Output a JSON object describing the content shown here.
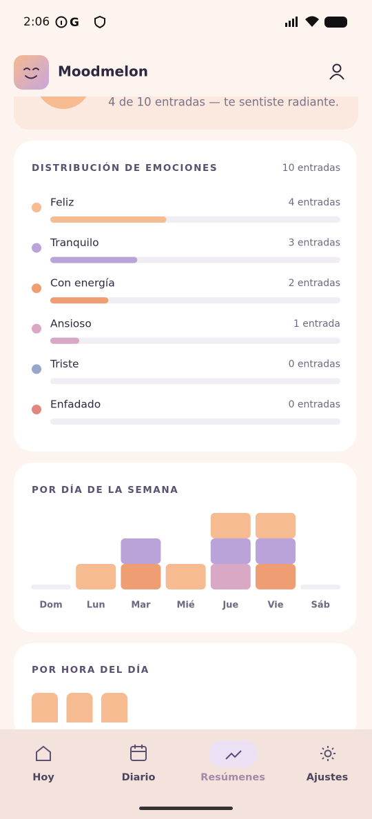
{
  "status_bar": {
    "time": "2:06"
  },
  "header": {
    "app_name": "Moodmelon"
  },
  "summary": {
    "text": "4 de 10 entradas — te sentiste radiante."
  },
  "distribution": {
    "title": "DISTRIBUCIÓN DE EMOCIONES",
    "total": 10,
    "total_label": "10 entradas",
    "emotions": [
      {
        "name": "Feliz",
        "color": "#f6bb91",
        "count": 4,
        "count_label": "4 entradas"
      },
      {
        "name": "Tranquilo",
        "color": "#b9a3d8",
        "count": 3,
        "count_label": "3 entradas"
      },
      {
        "name": "Con energía",
        "color": "#ef9d72",
        "count": 2,
        "count_label": "2 entradas"
      },
      {
        "name": "Ansioso",
        "color": "#d8a8c4",
        "count": 1,
        "count_label": "1 entrada"
      },
      {
        "name": "Triste",
        "color": "#97a7c9",
        "count": 0,
        "count_label": "0 entradas"
      },
      {
        "name": "Enfadado",
        "color": "#e0877f",
        "count": 0,
        "count_label": "0 entradas"
      }
    ]
  },
  "weekday": {
    "title": "POR DÍA DE LA SEMANA",
    "type": "stacked_bar",
    "ylim": [
      0,
      3
    ],
    "categories": [
      "Dom",
      "Lun",
      "Mar",
      "Mié",
      "Jue",
      "Vie",
      "Sáb"
    ],
    "series": [
      {
        "color": "#ef9d72",
        "values": [
          0,
          0,
          1,
          0,
          0,
          1,
          0
        ]
      },
      {
        "color": "#d8a8c4",
        "values": [
          0,
          0,
          0,
          0,
          1,
          0,
          0
        ]
      },
      {
        "color": "#b9a3d8",
        "values": [
          0,
          0,
          1,
          0,
          1,
          1,
          0
        ]
      },
      {
        "color": "#f6bb91",
        "values": [
          0,
          1,
          0,
          1,
          1,
          1,
          0
        ]
      }
    ]
  },
  "hourly": {
    "title": "POR HORA DEL DÍA",
    "type": "bar",
    "color": "#f6bb91",
    "ylim": [
      0,
      1
    ],
    "values": [
      1,
      1,
      1
    ]
  },
  "nav": {
    "tabs": [
      "Hoy",
      "Diario",
      "Resúmenes",
      "Ajustes"
    ]
  }
}
